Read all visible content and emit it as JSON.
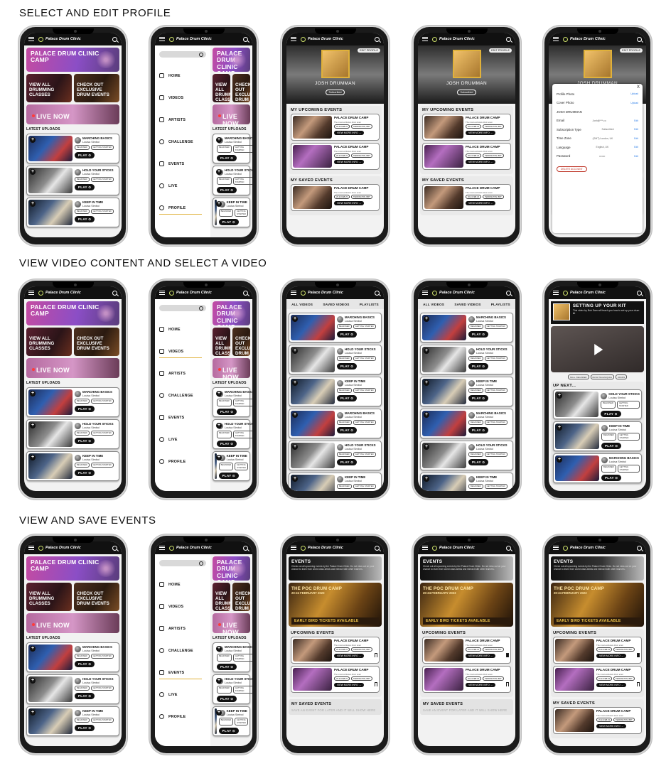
{
  "sections": [
    {
      "title": "SELECT AND EDIT PROFILE"
    },
    {
      "title": "VIEW VIDEO CONTENT AND SELECT A VIDEO"
    },
    {
      "title": "VIEW AND SAVE EVENTS"
    }
  ],
  "app": {
    "brand": "Palace Drum Clinic"
  },
  "home": {
    "hero": "PALACE DRUM CLINIC CAMP",
    "tile_left": "VIEW ALL DRUMMING CLASSES",
    "tile_right": "CHECK OUT EXCLUSIVE DRUM EVENTS",
    "live": "LIVE NOW",
    "latest": "LATEST UPLOADS"
  },
  "videos": [
    {
      "title": "MARCHING BASICS",
      "author": "Louisa Simbol",
      "tags": [
        "BEGINNER",
        "GETTING STARTED"
      ]
    },
    {
      "title": "HOLD YOUR STICKS",
      "author": "Louisa Simbol",
      "tags": [
        "BEGINNER",
        "GETTING STARTED"
      ]
    },
    {
      "title": "KEEP IN TIME",
      "author": "Louisa Simbol",
      "tags": [
        "BEGINNER",
        "GETTING STARTED"
      ]
    }
  ],
  "play_label": "PLAY",
  "menu": [
    "HOME",
    "VIDEOS",
    "ARTISTS",
    "CHALLENGE",
    "EVENTS",
    "LIVE",
    "PROFILE"
  ],
  "profile": {
    "edit": "EDIT PROFILE",
    "name": "JOSH DRUMMAN",
    "subscribed": "Subscribed",
    "upcoming": "MY UPCOMING EVENTS",
    "saved": "MY SAVED EVENTS"
  },
  "event": {
    "title": "PALACE DRUM CAMP",
    "sub": "The most exclusive drum even",
    "date": "20-24 FEB 23",
    "location": "TEDDINGTON, BRT",
    "more": "VIEW MORE INFO"
  },
  "modal": {
    "rows": [
      {
        "label": "Profile Photo",
        "value": "",
        "action": "Upload"
      },
      {
        "label": "Cover Photo",
        "value": "",
        "action": "Upload"
      },
      {
        "label": "JOSH DRUMMAN",
        "value": "",
        "action": ""
      },
      {
        "label": "Email",
        "value": "Josh@***.co",
        "action": "Edit"
      },
      {
        "label": "Subscription Type",
        "value": "Subscribed",
        "action": "Edit"
      },
      {
        "label": "Time Zone",
        "value": "(GMT) London, UK",
        "action": "Edit"
      },
      {
        "label": "Language",
        "value": "English, UK",
        "action": "Edit"
      },
      {
        "label": "Password",
        "value": "•••••••",
        "action": "Edit"
      }
    ],
    "delete": "DELETE ACCOUNT",
    "close": "X"
  },
  "video_tabs": [
    "ALL VIDEOS",
    "SAVED VIDEOS",
    "PLAYLISTS"
  ],
  "player": {
    "title": "SETTING UP YOUR KIT",
    "desc": "This video by Bob Sam will teach you how to set up your drum kit",
    "tags": [
      "SKILL: BEGINNER",
      "DRUM TECHNIQUES",
      "DRUMS"
    ],
    "upnext": "UP NEXT..."
  },
  "events_page": {
    "title": "EVENTS",
    "desc": "Check out all upcoming events by the Palace Drum Clinic. Do not miss out on your chance to learn from world class artists and interact with other learners.",
    "banner_title": "THE POC DRUM CAMP",
    "banner_date": "20-24 FEBRUARY 2023",
    "banner_cta": "EARLY BIRD TICKETS AVAILABLE",
    "upcoming": "UPCOMING EVENTS",
    "saved": "MY SAVED EVENTS",
    "empty": "SAVE AN EVENT FOR LATER AND IT WILL SHOW HERE"
  }
}
